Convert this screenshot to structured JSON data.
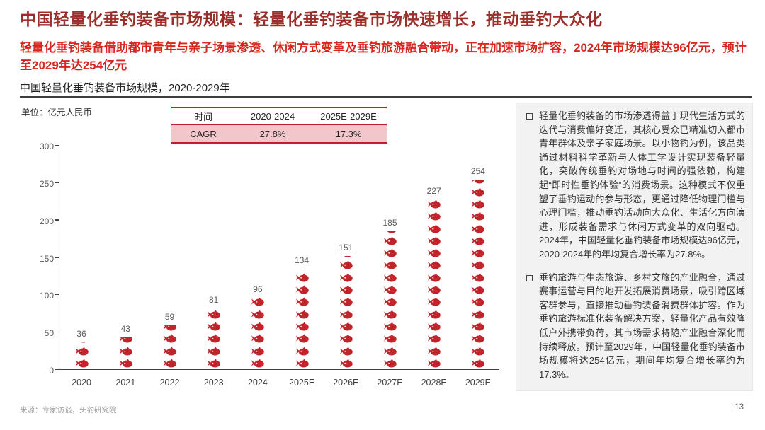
{
  "header": {
    "title": "中国轻量化垂钓装备市场规模：轻量化垂钓装备市场快速增长，推动垂钓大众化",
    "subtitle": "轻量化垂钓装备借助都市青年与亲子场景渗透、休闲方式变革及垂钓旅游融合带动，正在加速市场扩容，2024年市场规模达96亿元，预计至2029年达254亿元"
  },
  "chart_section": {
    "title": "中国轻量化垂钓装备市场规模，2020-2029年",
    "unit_label": "单位：亿元人民币"
  },
  "cagr_table": {
    "headers": [
      "时间",
      "2020-2024",
      "2025E-2029E"
    ],
    "row_label": "CAGR",
    "values": [
      "27.8%",
      "17.3%"
    ]
  },
  "chart_data": {
    "type": "bar",
    "style": "pictogram-fish-stack",
    "title": "中国轻量化垂钓装备市场规模，2020-2029年",
    "ylabel": "亿元人民币",
    "categories": [
      "2020",
      "2021",
      "2022",
      "2023",
      "2024",
      "2025E",
      "2026E",
      "2027E",
      "2028E",
      "2029E"
    ],
    "values": [
      36,
      43,
      59,
      81,
      96,
      134,
      151,
      185,
      227,
      254
    ],
    "ylim": [
      0,
      300
    ],
    "yticks": [
      0,
      50,
      100,
      150,
      200,
      250,
      300
    ],
    "grid": false,
    "legend": false,
    "icon": "fish-icon",
    "icon_color": "#C2242C"
  },
  "insights": {
    "bullets": [
      "轻量化垂钓装备的市场渗透得益于现代生活方式的迭代与消费偏好变迁，其核心受众已精准切入都市青年群体及亲子家庭场景。以小物钓为例，该品类通过材料科学革新与人体工学设计实现装备轻量化，突破传统垂钓对场地与时间的强依赖，构建起“即时性垂钓体验”的消费场景。这种模式不仅重塑了垂钓运动的参与形态，更通过降低物理门槛与心理门槛，推动垂钓活动向大众化、生活化方向演进，形成装备需求与休闲方式变革的双向驱动。2024年，中国轻量化垂钓装备市场规模达96亿元，2020-2024年的年均复合增长率为27.8%。",
      "垂钓旅游与生态旅游、乡村文旅的产业融合，通过赛事运营与目的地开发拓展消费场景，吸引跨区域客群参与，直接推动垂钓装备消费群体扩容。作为垂钓旅游标准化装备解决方案，轻量化产品有效降低户外携带负荷，其市场需求将随产业融合深化而持续释放。预计至2029年，中国轻量化垂钓装备市场规模将达254亿元，期间年均复合增长率约为17.3%。"
    ]
  },
  "footer": {
    "source": "来源：专家访谈，头豹研究院",
    "page_number": "13"
  },
  "colors": {
    "title_red": "#9C2F2B",
    "subtitle_red": "#D7261F",
    "fish_red": "#C2242C",
    "table_border_red": "#BE1E2D",
    "table_row_pink": "#F2C7CB",
    "panel_bg": "#F2F2F2",
    "axis_gray": "#404040"
  }
}
